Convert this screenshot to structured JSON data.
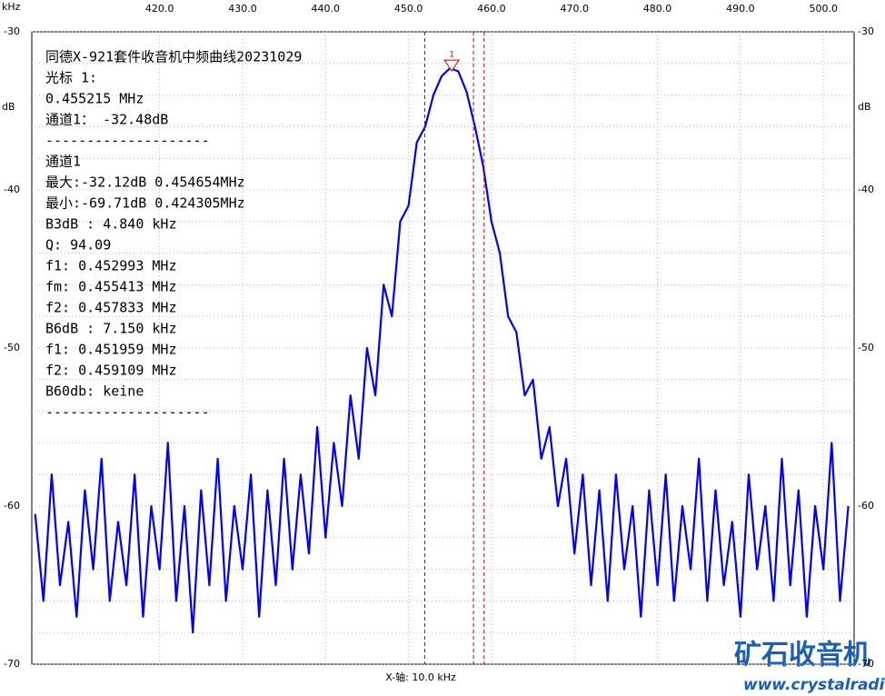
{
  "chart_data": {
    "type": "line",
    "title": "同德X-921套件收音机中频曲线20231029",
    "info_lines": [
      "光标 1:",
      "0.455215 MHz",
      "通道1： -32.48dB",
      "--------------------",
      "通道1",
      "最大:-32.12dB 0.454654MHz",
      "最小:-69.71dB 0.424305MHz",
      "B3dB : 4.840 kHz",
      "Q: 94.09",
      "f1: 0.452993 MHz",
      "fm: 0.455413 MHz",
      "f2: 0.457833 MHz",
      "B6dB : 7.150 kHz",
      "f1: 0.451959 MHz",
      "f2: 0.459109 MHz",
      "B60db: keine",
      "--------------------"
    ],
    "x_unit": "kHz",
    "y_label": "dB",
    "x_label": "X-轴: 10.0 kHz",
    "watermark": [
      "矿石收音机",
      "www.crystalradio.cn"
    ],
    "xlim": [
      404.6,
      503.7
    ],
    "ylim": [
      -70,
      -30
    ],
    "xticks": [
      {
        "value": 420,
        "label": "420.0"
      },
      {
        "value": 430,
        "label": "430.0"
      },
      {
        "value": 440,
        "label": "440.0"
      },
      {
        "value": 450,
        "label": "450.0"
      },
      {
        "value": 460,
        "label": "460.0"
      },
      {
        "value": 470,
        "label": "470.0"
      },
      {
        "value": 480,
        "label": "480.0"
      },
      {
        "value": 490,
        "label": "490.0"
      },
      {
        "value": 500,
        "label": "500.0"
      }
    ],
    "yticks": [
      -30,
      -40,
      -50,
      -60,
      -70
    ],
    "yminor": [
      -32,
      -34,
      -36,
      -38,
      -42,
      -44,
      -46,
      -48,
      -52,
      -54,
      -56,
      -58,
      -62,
      -64,
      -66,
      -68
    ],
    "grid": true,
    "color": "#0000ff",
    "marker_line_color": "#d00000",
    "marker_lines": [
      451.96,
      457.83,
      459.11
    ],
    "marker": {
      "label": "1",
      "x": 455.2,
      "y": -32.48
    },
    "x": [
      405,
      406,
      407,
      408,
      409,
      410,
      411,
      412,
      413,
      414,
      415,
      416,
      417,
      418,
      419,
      420,
      421,
      422,
      423,
      424,
      425,
      426,
      427,
      428,
      429,
      430,
      431,
      432,
      433,
      434,
      435,
      436,
      437,
      438,
      439,
      440,
      441,
      442,
      443,
      444,
      445,
      446,
      447,
      448,
      449,
      450,
      451,
      452,
      453,
      454,
      455,
      456,
      457,
      458,
      459,
      460,
      461,
      462,
      463,
      464,
      465,
      466,
      467,
      468,
      469,
      470,
      471,
      472,
      473,
      474,
      475,
      476,
      477,
      478,
      479,
      480,
      481,
      482,
      483,
      484,
      485,
      486,
      487,
      488,
      489,
      490,
      491,
      492,
      493,
      494,
      495,
      496,
      497,
      498,
      499,
      500,
      501,
      502,
      503
    ],
    "values": [
      -60.5,
      -66,
      -58,
      -65,
      -61,
      -67,
      -59,
      -64,
      -57,
      -66,
      -61,
      -65,
      -58,
      -67,
      -60,
      -64,
      -56,
      -66,
      -60,
      -68,
      -59,
      -65,
      -57,
      -66,
      -60,
      -64,
      -58,
      -67,
      -59,
      -65,
      -57,
      -64,
      -58,
      -63,
      -55,
      -62,
      -56,
      -60,
      -53,
      -57,
      -50,
      -53,
      -46,
      -48,
      -42,
      -41,
      -37,
      -36,
      -34,
      -32.8,
      -32.3,
      -32.5,
      -33.8,
      -36,
      -38.5,
      -42,
      -44,
      -48,
      -49,
      -53,
      -52,
      -57,
      -55,
      -60,
      -57,
      -63,
      -58,
      -65,
      -59,
      -66,
      -58,
      -64,
      -60,
      -67,
      -59,
      -65,
      -58,
      -66,
      -60,
      -64,
      -57,
      -66,
      -59,
      -65,
      -61,
      -67,
      -58,
      -64,
      -60,
      -66,
      -57,
      -65,
      -59,
      -67,
      -60,
      -64,
      -56,
      -66,
      -60
    ]
  }
}
